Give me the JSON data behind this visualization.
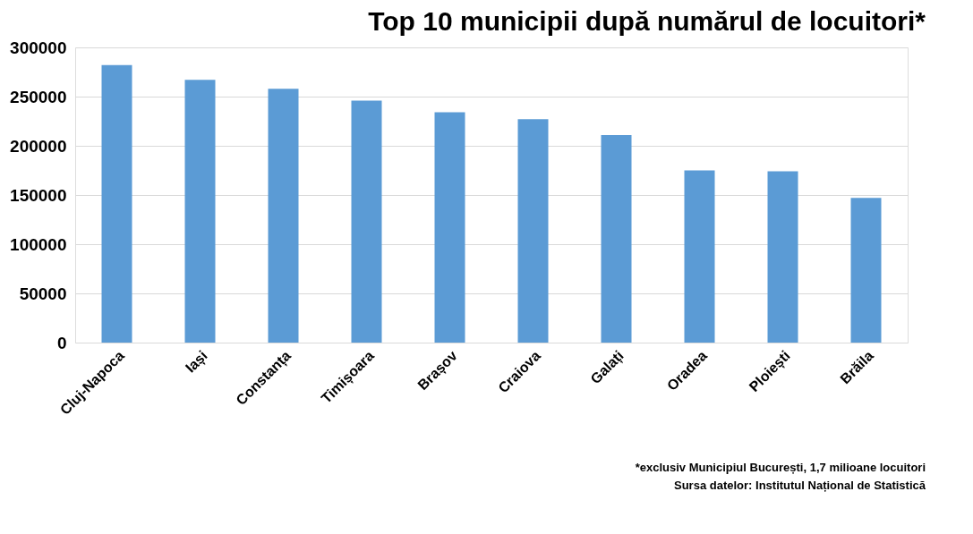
{
  "chart_data": {
    "type": "bar",
    "title": "Top 10 municipii după numărul de locuitori*",
    "categories": [
      "Cluj-Napoca",
      "Iași",
      "Constanța",
      "Timișoara",
      "Brașov",
      "Craiova",
      "Galați",
      "Oradea",
      "Ploiești",
      "Brăila"
    ],
    "values": [
      282000,
      267000,
      258000,
      246000,
      234000,
      227000,
      211000,
      175000,
      174000,
      147000
    ],
    "color": "#5b9bd5",
    "ylim": [
      0,
      300000
    ],
    "yticks": [
      0,
      50000,
      100000,
      150000,
      200000,
      250000,
      300000
    ],
    "grid": "y",
    "annotations": [
      "*exclusiv Municipiul București, 1,7 milioane locuitori",
      "Sursa datelor: Institutul Național de Statistică"
    ]
  }
}
